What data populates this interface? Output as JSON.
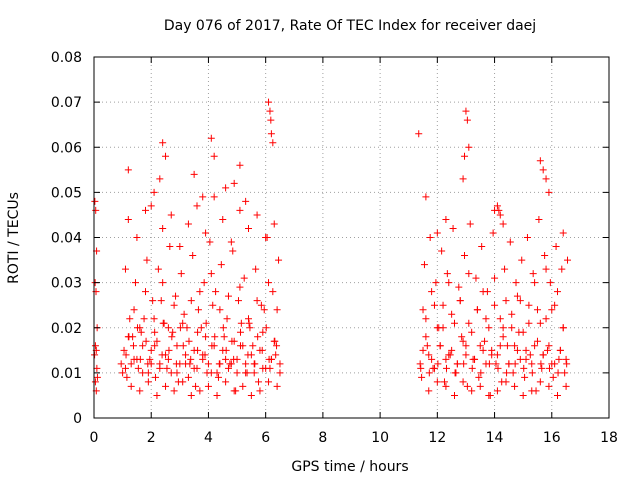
{
  "chart_data": {
    "type": "scatter",
    "title": "Day 076 of 2017, Rate Of TEC Index for receiver daej",
    "xlabel": "GPS time / hours",
    "ylabel": "ROTI / TECUs",
    "xlim": [
      0,
      18
    ],
    "ylim": [
      0,
      0.08
    ],
    "xticks": [
      0,
      2,
      4,
      6,
      8,
      10,
      12,
      14,
      16,
      18
    ],
    "yticks": [
      0,
      0.01,
      0.02,
      0.03,
      0.04,
      0.05,
      0.06,
      0.07,
      0.08
    ],
    "xtick_labels": [
      "0",
      "2",
      "4",
      "6",
      "8",
      "10",
      "12",
      "14",
      "16",
      "18"
    ],
    "ytick_labels": [
      "0",
      "0.01",
      "0.02",
      "0.03",
      "0.04",
      "0.05",
      "0.06",
      "0.07",
      "0.08"
    ],
    "grid": true,
    "marker": "+",
    "color": "#ff0000",
    "series": [
      {
        "name": "ROTI",
        "x": [
          0.02,
          0.05,
          0.08,
          0.1,
          0.12,
          0.03,
          0.06,
          0.09,
          0.04,
          0.07,
          0.11,
          0.05,
          0.08,
          0.95,
          1.0,
          1.05,
          1.1,
          1.2,
          1.3,
          1.4,
          1.5,
          1.6,
          1.7,
          1.8,
          1.9,
          2.0,
          2.1,
          2.2,
          2.3,
          2.4,
          2.5,
          2.6,
          2.7,
          2.8,
          2.9,
          3.0,
          3.1,
          3.2,
          3.3,
          3.4,
          3.5,
          3.6,
          3.7,
          3.8,
          3.9,
          4.0,
          4.1,
          4.2,
          4.3,
          4.4,
          4.5,
          4.6,
          4.7,
          4.8,
          4.9,
          5.0,
          5.1,
          5.2,
          5.3,
          5.4,
          5.5,
          5.6,
          5.7,
          5.8,
          5.9,
          6.0,
          6.1,
          6.2,
          6.3,
          6.4,
          6.5,
          1.15,
          1.35,
          1.55,
          1.75,
          1.95,
          2.15,
          2.35,
          2.55,
          2.75,
          2.95,
          3.15,
          3.35,
          3.55,
          3.75,
          3.95,
          4.15,
          4.35,
          4.55,
          4.75,
          4.95,
          5.15,
          5.35,
          5.55,
          5.75,
          5.95,
          6.15,
          6.35,
          1.25,
          1.45,
          1.65,
          1.85,
          2.05,
          2.25,
          2.45,
          2.65,
          2.85,
          3.05,
          3.25,
          3.45,
          3.65,
          3.85,
          4.05,
          4.25,
          4.45,
          4.65,
          4.85,
          5.05,
          5.25,
          5.45,
          5.65,
          5.85,
          6.05,
          6.25,
          6.45,
          1.12,
          1.38,
          1.62,
          1.88,
          2.12,
          2.38,
          2.62,
          2.88,
          3.12,
          3.38,
          3.62,
          3.88,
          4.12,
          4.38,
          4.62,
          4.88,
          5.12,
          5.38,
          5.62,
          5.88,
          6.12,
          6.38,
          1.2,
          1.5,
          1.8,
          2.1,
          2.4,
          2.7,
          3.0,
          3.3,
          3.6,
          3.9,
          4.2,
          4.5,
          4.8,
          5.1,
          5.4,
          5.7,
          6.0,
          6.3,
          1.3,
          1.6,
          1.9,
          2.2,
          2.5,
          2.8,
          3.1,
          3.4,
          3.7,
          4.0,
          4.3,
          4.6,
          4.9,
          5.2,
          5.5,
          5.8,
          6.1,
          6.4,
          1.1,
          1.4,
          1.7,
          2.0,
          2.3,
          2.6,
          2.9,
          3.2,
          3.5,
          3.8,
          4.1,
          4.4,
          4.7,
          5.0,
          5.3,
          5.6,
          5.9,
          6.2,
          6.5,
          1.22,
          1.52,
          1.82,
          2.12,
          2.42,
          2.72,
          3.02,
          3.32,
          3.62,
          3.92,
          4.22,
          4.52,
          4.82,
          5.12,
          5.42,
          5.72,
          6.02,
          6.32,
          1.2,
          2.4,
          2.5,
          2.3,
          4.1,
          4.2,
          6.1,
          6.15,
          6.2,
          6.18,
          6.25,
          4.6,
          5.1,
          4.9,
          5.3,
          2.0,
          3.5,
          3.8,
          11.4,
          11.5,
          11.6,
          11.7,
          11.8,
          11.9,
          12.0,
          12.1,
          12.2,
          12.3,
          12.4,
          12.5,
          12.6,
          12.7,
          12.8,
          12.9,
          13.0,
          13.1,
          13.2,
          13.3,
          13.4,
          13.5,
          13.6,
          13.7,
          13.8,
          13.9,
          14.0,
          14.1,
          14.2,
          14.3,
          14.4,
          14.5,
          14.6,
          14.7,
          14.8,
          14.9,
          15.0,
          15.1,
          15.2,
          15.3,
          15.4,
          15.5,
          15.6,
          15.7,
          15.8,
          15.9,
          16.0,
          16.1,
          16.2,
          16.3,
          16.4,
          16.5,
          11.45,
          11.65,
          11.85,
          12.05,
          12.25,
          12.45,
          12.65,
          12.85,
          13.05,
          13.25,
          13.45,
          13.65,
          13.85,
          14.05,
          14.25,
          14.45,
          14.65,
          14.85,
          15.05,
          15.25,
          15.45,
          15.65,
          15.85,
          16.05,
          16.25,
          16.45,
          11.55,
          11.75,
          11.95,
          12.15,
          12.35,
          12.55,
          12.75,
          12.95,
          13.15,
          13.35,
          13.55,
          13.75,
          13.95,
          14.15,
          14.35,
          14.55,
          14.75,
          14.95,
          15.15,
          15.35,
          15.55,
          15.75,
          15.95,
          16.15,
          16.35,
          16.55,
          11.5,
          11.8,
          12.1,
          12.4,
          12.7,
          13.0,
          13.3,
          13.6,
          13.9,
          14.2,
          14.5,
          14.8,
          15.1,
          15.4,
          15.7,
          16.0,
          16.3,
          11.6,
          11.9,
          12.2,
          12.5,
          12.8,
          13.1,
          13.4,
          13.7,
          14.0,
          14.3,
          14.6,
          14.9,
          15.2,
          15.5,
          15.8,
          16.1,
          16.4,
          11.7,
          12.0,
          12.3,
          12.6,
          12.9,
          13.2,
          13.5,
          13.8,
          14.1,
          14.4,
          14.7,
          15.0,
          15.3,
          15.6,
          15.9,
          16.2,
          16.5,
          11.42,
          11.72,
          12.02,
          12.32,
          12.62,
          12.92,
          13.22,
          13.52,
          13.82,
          14.12,
          14.42,
          14.72,
          15.02,
          15.32,
          15.62,
          15.92,
          16.22,
          16.52,
          11.35,
          11.6,
          12.9,
          13.0,
          13.05,
          12.95,
          13.1,
          14.2,
          14.1,
          14.3,
          15.7,
          15.8,
          15.6,
          15.9,
          12.0,
          12.3,
          14.0,
          16.4
        ],
        "y": [
          0.014,
          0.016,
          0.015,
          0.011,
          0.009,
          0.048,
          0.046,
          0.037,
          0.03,
          0.028,
          0.02,
          0.008,
          0.006,
          0.012,
          0.01,
          0.015,
          0.033,
          0.018,
          0.012,
          0.024,
          0.013,
          0.02,
          0.016,
          0.028,
          0.01,
          0.015,
          0.022,
          0.017,
          0.012,
          0.03,
          0.014,
          0.02,
          0.01,
          0.025,
          0.016,
          0.012,
          0.021,
          0.014,
          0.009,
          0.026,
          0.015,
          0.011,
          0.028,
          0.014,
          0.018,
          0.012,
          0.032,
          0.016,
          0.01,
          0.024,
          0.015,
          0.013,
          0.027,
          0.012,
          0.017,
          0.01,
          0.029,
          0.016,
          0.012,
          0.022,
          0.014,
          0.01,
          0.026,
          0.015,
          0.019,
          0.011,
          0.03,
          0.013,
          0.017,
          0.024,
          0.012,
          0.009,
          0.018,
          0.011,
          0.022,
          0.013,
          0.009,
          0.026,
          0.011,
          0.019,
          0.008,
          0.023,
          0.012,
          0.007,
          0.02,
          0.01,
          0.025,
          0.009,
          0.018,
          0.012,
          0.006,
          0.021,
          0.01,
          0.016,
          0.008,
          0.024,
          0.011,
          0.014,
          0.022,
          0.03,
          0.019,
          0.035,
          0.026,
          0.033,
          0.021,
          0.038,
          0.027,
          0.032,
          0.02,
          0.036,
          0.024,
          0.03,
          0.039,
          0.028,
          0.034,
          0.022,
          0.037,
          0.026,
          0.031,
          0.02,
          0.033,
          0.025,
          0.04,
          0.028,
          0.035,
          0.014,
          0.016,
          0.013,
          0.012,
          0.016,
          0.014,
          0.015,
          0.012,
          0.016,
          0.013,
          0.015,
          0.014,
          0.016,
          0.012,
          0.015,
          0.013,
          0.016,
          0.014,
          0.012,
          0.015,
          0.013,
          0.016,
          0.044,
          0.04,
          0.046,
          0.05,
          0.042,
          0.045,
          0.038,
          0.043,
          0.047,
          0.041,
          0.049,
          0.044,
          0.039,
          0.046,
          0.042,
          0.045,
          0.04,
          0.043,
          0.007,
          0.006,
          0.008,
          0.005,
          0.007,
          0.006,
          0.008,
          0.005,
          0.006,
          0.007,
          0.005,
          0.008,
          0.006,
          0.007,
          0.005,
          0.006,
          0.008,
          0.007,
          0.011,
          0.013,
          0.01,
          0.012,
          0.011,
          0.013,
          0.01,
          0.012,
          0.011,
          0.013,
          0.01,
          0.012,
          0.011,
          0.013,
          0.01,
          0.012,
          0.011,
          0.013,
          0.01,
          0.018,
          0.02,
          0.017,
          0.019,
          0.021,
          0.018,
          0.02,
          0.017,
          0.019,
          0.021,
          0.018,
          0.02,
          0.017,
          0.019,
          0.021,
          0.018,
          0.02,
          0.017,
          0.055,
          0.061,
          0.058,
          0.053,
          0.062,
          0.058,
          0.07,
          0.068,
          0.063,
          0.066,
          0.061,
          0.051,
          0.056,
          0.052,
          0.048,
          0.047,
          0.054,
          0.049,
          0.012,
          0.024,
          0.018,
          0.014,
          0.028,
          0.011,
          0.02,
          0.016,
          0.025,
          0.013,
          0.03,
          0.015,
          0.021,
          0.012,
          0.026,
          0.017,
          0.014,
          0.032,
          0.019,
          0.013,
          0.024,
          0.016,
          0.028,
          0.012,
          0.02,
          0.015,
          0.031,
          0.014,
          0.022,
          0.018,
          0.026,
          0.012,
          0.02,
          0.016,
          0.027,
          0.013,
          0.019,
          0.015,
          0.025,
          0.012,
          0.03,
          0.017,
          0.021,
          0.014,
          0.033,
          0.016,
          0.024,
          0.012,
          0.028,
          0.015,
          0.02,
          0.013,
          0.009,
          0.016,
          0.011,
          0.02,
          0.008,
          0.014,
          0.01,
          0.018,
          0.007,
          0.013,
          0.009,
          0.017,
          0.005,
          0.012,
          0.008,
          0.016,
          0.01,
          0.019,
          0.009,
          0.014,
          0.006,
          0.011,
          0.015,
          0.009,
          0.013,
          0.01,
          0.034,
          0.04,
          0.03,
          0.037,
          0.032,
          0.042,
          0.029,
          0.036,
          0.043,
          0.031,
          0.038,
          0.028,
          0.041,
          0.046,
          0.033,
          0.039,
          0.03,
          0.035,
          0.04,
          0.032,
          0.044,
          0.036,
          0.03,
          0.038,
          0.033,
          0.035,
          0.015,
          0.013,
          0.016,
          0.014,
          0.012,
          0.016,
          0.013,
          0.015,
          0.014,
          0.016,
          0.012,
          0.015,
          0.013,
          0.016,
          0.014,
          0.012,
          0.015,
          0.022,
          0.025,
          0.02,
          0.023,
          0.026,
          0.021,
          0.024,
          0.022,
          0.025,
          0.02,
          0.023,
          0.026,
          0.021,
          0.024,
          0.022,
          0.025,
          0.02,
          0.006,
          0.008,
          0.007,
          0.005,
          0.008,
          0.006,
          0.007,
          0.005,
          0.006,
          0.008,
          0.007,
          0.005,
          0.006,
          0.008,
          0.007,
          0.005,
          0.007,
          0.011,
          0.01,
          0.012,
          0.011,
          0.01,
          0.012,
          0.011,
          0.01,
          0.012,
          0.011,
          0.01,
          0.012,
          0.011,
          0.01,
          0.012,
          0.011,
          0.01,
          0.012,
          0.063,
          0.049,
          0.053,
          0.068,
          0.066,
          0.058,
          0.06,
          0.045,
          0.047,
          0.043,
          0.055,
          0.053,
          0.057,
          0.05,
          0.041,
          0.044,
          0.046,
          0.041
        ]
      }
    ]
  }
}
